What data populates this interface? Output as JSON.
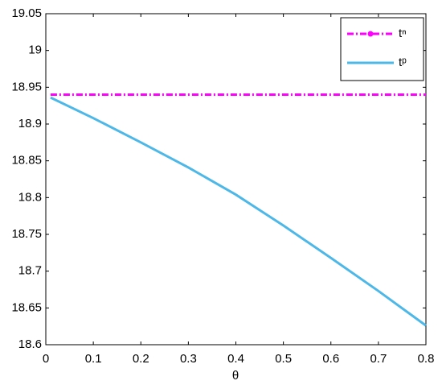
{
  "chart_data": {
    "type": "line",
    "x_label": "θ",
    "x": [
      0.01,
      0.1,
      0.2,
      0.3,
      0.4,
      0.5,
      0.6,
      0.7,
      0.8
    ],
    "series": [
      {
        "name": "tⁿ",
        "color": "#ff00ff",
        "dash": "dash-dot",
        "marker": true,
        "values": [
          18.94,
          18.94,
          18.94,
          18.94,
          18.94,
          18.94,
          18.94,
          18.94,
          18.94
        ]
      },
      {
        "name": "tᵖ",
        "color": "#4db8e8",
        "dash": "solid",
        "marker": false,
        "values": [
          18.936,
          18.908,
          18.875,
          18.841,
          18.804,
          18.762,
          18.718,
          18.673,
          18.626
        ]
      }
    ],
    "xlim": [
      0,
      0.8
    ],
    "xticks": [
      0,
      0.1,
      0.2,
      0.3,
      0.4,
      0.5,
      0.6,
      0.7,
      0.8
    ],
    "ylim": [
      18.6,
      19.05
    ],
    "yticks": [
      18.6,
      18.65,
      18.7,
      18.75,
      18.8,
      18.85,
      18.9,
      18.95,
      19,
      19.05
    ],
    "grid": false,
    "legend": "top-right"
  }
}
